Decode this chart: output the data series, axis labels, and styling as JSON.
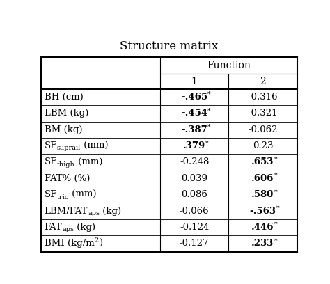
{
  "title": "Structure matrix",
  "col_header_1": "Function",
  "col_header_2": [
    "1",
    "2"
  ],
  "rows": [
    {
      "label_parts": [
        {
          "text": "BH (cm)",
          "style": "normal"
        }
      ],
      "f1": "-.465",
      "f1_bold": true,
      "f1_star": true,
      "f2": "-0.316",
      "f2_bold": false,
      "f2_star": false
    },
    {
      "label_parts": [
        {
          "text": "LBM (kg)",
          "style": "normal"
        }
      ],
      "f1": "-.454",
      "f1_bold": true,
      "f1_star": true,
      "f2": "-0.321",
      "f2_bold": false,
      "f2_star": false
    },
    {
      "label_parts": [
        {
          "text": "BM (kg)",
          "style": "normal"
        }
      ],
      "f1": "-.387",
      "f1_bold": true,
      "f1_star": true,
      "f2": "-0.062",
      "f2_bold": false,
      "f2_star": false
    },
    {
      "label_parts": [
        {
          "text": "SF",
          "style": "normal"
        },
        {
          "text": "suprail",
          "style": "sub"
        },
        {
          "text": " (mm)",
          "style": "normal"
        }
      ],
      "f1": ".379",
      "f1_bold": true,
      "f1_star": true,
      "f2": "0.23",
      "f2_bold": false,
      "f2_star": false
    },
    {
      "label_parts": [
        {
          "text": "SF",
          "style": "normal"
        },
        {
          "text": "thigh",
          "style": "sub"
        },
        {
          "text": " (mm)",
          "style": "normal"
        }
      ],
      "f1": "-0.248",
      "f1_bold": false,
      "f1_star": false,
      "f2": ".653",
      "f2_bold": true,
      "f2_star": true
    },
    {
      "label_parts": [
        {
          "text": "FAT% (%)",
          "style": "normal"
        }
      ],
      "f1": "0.039",
      "f1_bold": false,
      "f1_star": false,
      "f2": ".606",
      "f2_bold": true,
      "f2_star": true
    },
    {
      "label_parts": [
        {
          "text": "SF",
          "style": "normal"
        },
        {
          "text": "tric",
          "style": "sub"
        },
        {
          "text": " (mm)",
          "style": "normal"
        }
      ],
      "f1": "0.086",
      "f1_bold": false,
      "f1_star": false,
      "f2": ".580",
      "f2_bold": true,
      "f2_star": true
    },
    {
      "label_parts": [
        {
          "text": "LBM/FAT",
          "style": "normal"
        },
        {
          "text": "aps",
          "style": "sub"
        },
        {
          "text": " (kg)",
          "style": "normal"
        }
      ],
      "f1": "-0.066",
      "f1_bold": false,
      "f1_star": false,
      "f2": "-.563",
      "f2_bold": true,
      "f2_star": true
    },
    {
      "label_parts": [
        {
          "text": "FAT",
          "style": "normal"
        },
        {
          "text": "aps",
          "style": "sub"
        },
        {
          "text": " (kg)",
          "style": "normal"
        }
      ],
      "f1": "-0.124",
      "f1_bold": false,
      "f1_star": false,
      "f2": ".446",
      "f2_bold": true,
      "f2_star": true
    },
    {
      "label_parts": [
        {
          "text": "BMI (kg/m",
          "style": "normal"
        },
        {
          "text": "2",
          "style": "super"
        },
        {
          "text": ")",
          "style": "normal"
        }
      ],
      "f1": "-0.127",
      "f1_bold": false,
      "f1_star": false,
      "f2": ".233",
      "f2_bold": true,
      "f2_star": true
    }
  ],
  "background_color": "#ffffff",
  "text_color": "#000000",
  "font_size": 9.5,
  "title_font_size": 12
}
